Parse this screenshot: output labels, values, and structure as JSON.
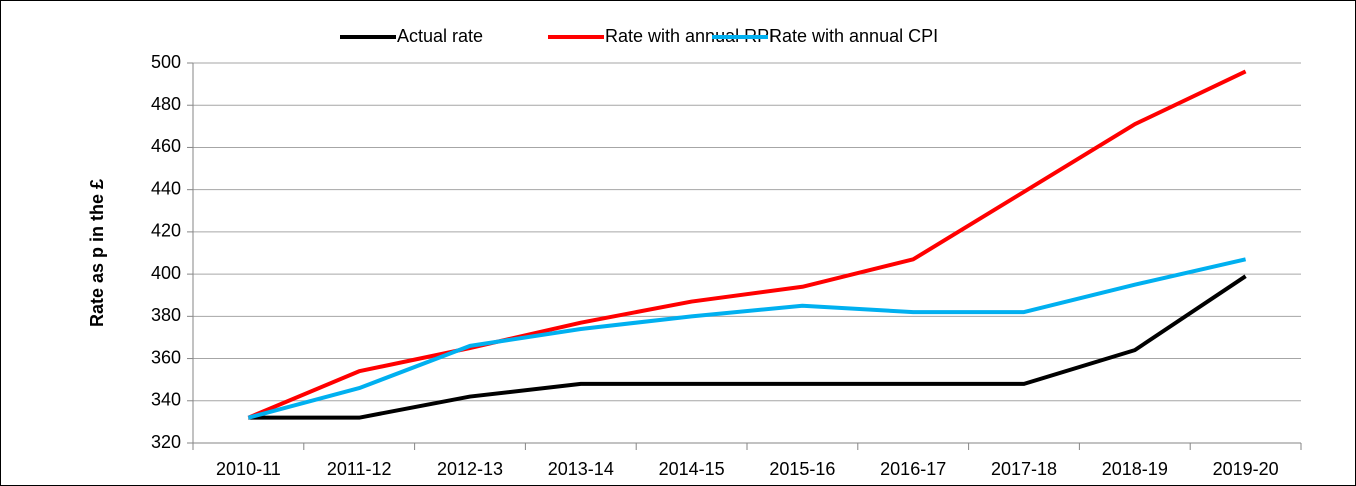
{
  "chart_data": {
    "type": "line",
    "y_label": "Rate as p in the £",
    "categories": [
      "2010-11",
      "2011-12",
      "2012-13",
      "2013-14",
      "2014-15",
      "2015-16",
      "2016-17",
      "2017-18",
      "2018-19",
      "2019-20"
    ],
    "series": [
      {
        "name": "Actual rate",
        "color": "#000000",
        "values": [
          332,
          332,
          342,
          348,
          348,
          348,
          348,
          348,
          364,
          399
        ]
      },
      {
        "name": "Rate with annual RPI",
        "color": "#ff0000",
        "values": [
          332,
          354,
          365,
          377,
          387,
          394,
          407,
          439,
          471,
          496
        ]
      },
      {
        "name": "Rate with annual CPI",
        "color": "#00b0f0",
        "values": [
          332,
          346,
          366,
          374,
          380,
          385,
          382,
          382,
          395,
          407
        ]
      }
    ],
    "ylim": [
      320,
      500
    ],
    "yticks": [
      320,
      340,
      360,
      380,
      400,
      420,
      440,
      460,
      480,
      500
    ],
    "grid": true,
    "legend": "top"
  }
}
